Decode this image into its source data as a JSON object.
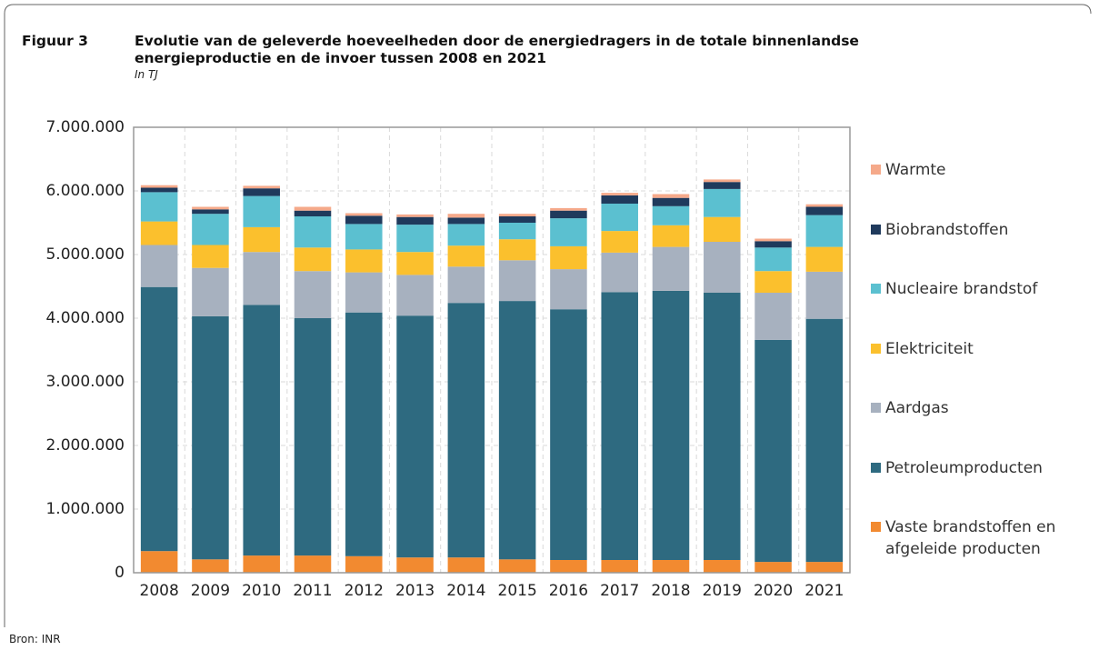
{
  "chart_data": {
    "type": "stacked-bar",
    "figure_label": "Figuur 3",
    "title": "Evolutie van de geleverde hoeveelheden door de energiedragers in de totale binnenlandse energieproductie en de invoer tussen 2008 en 2021",
    "subtitle": "In TJ",
    "source": "Bron: INR",
    "categories": [
      "2008",
      "2009",
      "2010",
      "2011",
      "2012",
      "2013",
      "2014",
      "2015",
      "2016",
      "2017",
      "2018",
      "2019",
      "2020",
      "2021"
    ],
    "series": [
      {
        "name": "Vaste brandstoffen en afgeleide producten",
        "color": "#f28a30",
        "values": [
          340000,
          210000,
          270000,
          270000,
          260000,
          240000,
          240000,
          210000,
          200000,
          200000,
          200000,
          200000,
          170000,
          170000
        ]
      },
      {
        "name": "Petroleumproducten",
        "color": "#2e6a80",
        "values": [
          4150000,
          3820000,
          3940000,
          3730000,
          3830000,
          3800000,
          4000000,
          4060000,
          3940000,
          4210000,
          4230000,
          4200000,
          3490000,
          3820000
        ]
      },
      {
        "name": "Aardgas",
        "color": "#a7b1bf",
        "values": [
          660000,
          760000,
          830000,
          740000,
          630000,
          640000,
          570000,
          640000,
          630000,
          620000,
          690000,
          800000,
          740000,
          740000
        ]
      },
      {
        "name": "Elektriciteit",
        "color": "#fbc02d",
        "values": [
          370000,
          360000,
          390000,
          370000,
          360000,
          360000,
          330000,
          330000,
          360000,
          340000,
          340000,
          390000,
          340000,
          390000
        ]
      },
      {
        "name": "Nucleaire brandstof",
        "color": "#5bc0d0",
        "values": [
          460000,
          490000,
          490000,
          490000,
          400000,
          430000,
          340000,
          260000,
          440000,
          430000,
          300000,
          440000,
          370000,
          500000
        ]
      },
      {
        "name": "Biobrandstoffen",
        "color": "#1f3a5c",
        "values": [
          70000,
          70000,
          120000,
          90000,
          130000,
          120000,
          100000,
          100000,
          120000,
          130000,
          130000,
          110000,
          100000,
          130000
        ]
      },
      {
        "name": "Warmte",
        "color": "#f5a98a",
        "values": [
          40000,
          40000,
          40000,
          60000,
          40000,
          40000,
          60000,
          40000,
          40000,
          40000,
          60000,
          40000,
          40000,
          40000
        ]
      }
    ],
    "ylim": [
      0,
      7000000
    ],
    "yticks": [
      0,
      {
        "value": 1000000,
        "label": "1.000.000"
      },
      {
        "value": 2000000,
        "label": "2.000.000"
      },
      {
        "value": 3000000,
        "label": "3.000.000"
      },
      {
        "value": 4000000,
        "label": "4.000.000"
      },
      {
        "value": 5000000,
        "label": "5.000.000"
      },
      {
        "value": 6000000,
        "label": "6.000.000"
      },
      {
        "value": 7000000,
        "label": "7.000.000"
      }
    ],
    "grid": true,
    "legend": "right"
  }
}
